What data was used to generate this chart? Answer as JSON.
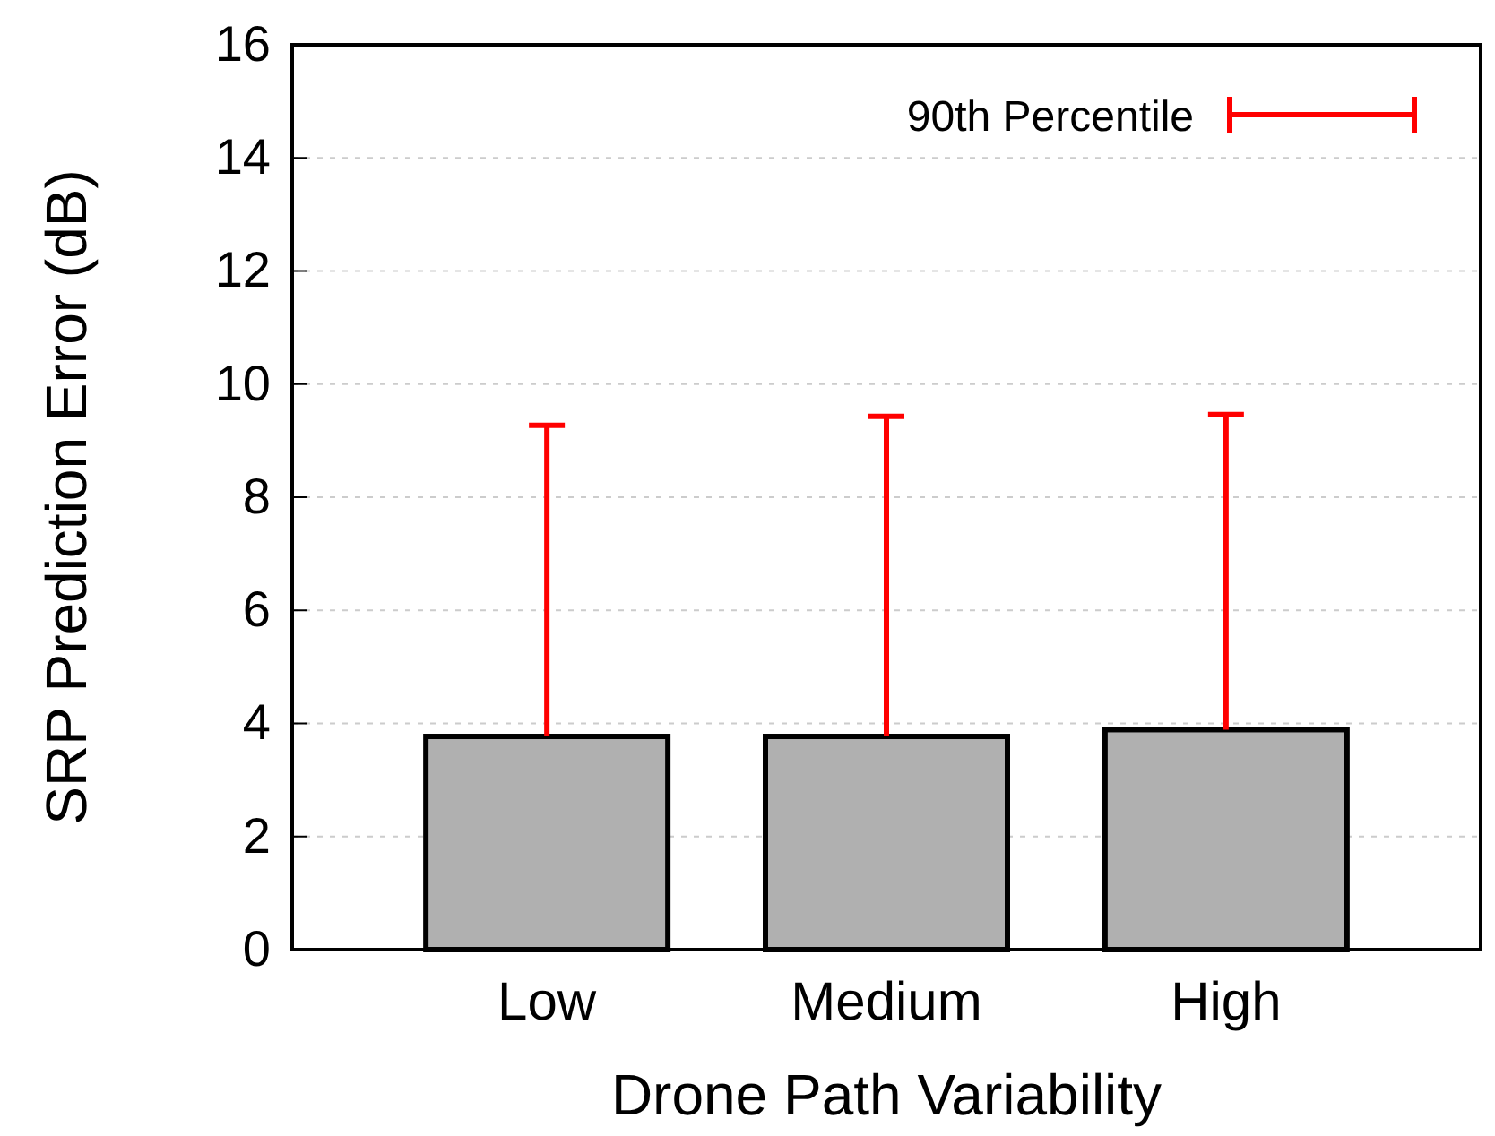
{
  "chart_data": {
    "type": "bar",
    "xlabel": "Drone Path Variability",
    "ylabel": "SRP Prediction Error (dB)",
    "categories": [
      "Low",
      "Medium",
      "High"
    ],
    "series": [
      {
        "color": "#b0b0b0",
        "values": [
          3.77,
          3.77,
          3.89
        ],
        "errors": [
          [
            3.77,
            9.27
          ],
          [
            3.77,
            9.43
          ],
          [
            3.89,
            9.46
          ]
        ]
      }
    ],
    "ylim": [
      0,
      16
    ],
    "yticks": [
      0,
      2,
      4,
      6,
      8,
      10,
      12,
      14,
      16
    ],
    "grid": "y",
    "annotations": [
      "90th Percentile"
    ]
  }
}
